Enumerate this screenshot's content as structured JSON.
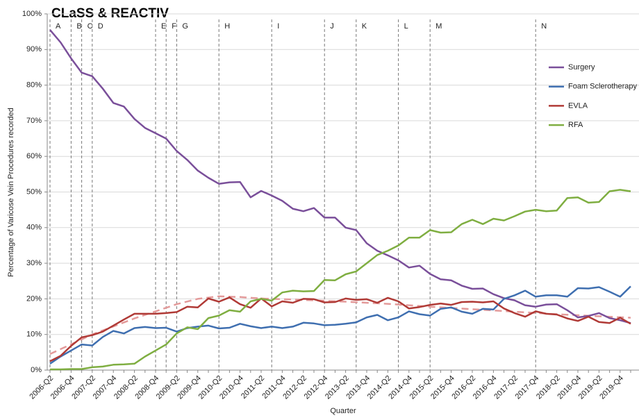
{
  "chart_data": {
    "type": "line",
    "title": "CLaSS & REACTIV",
    "y_label": "Percentage of Varicose Vein Procedures  recorded",
    "x_label": "Quarter",
    "categories": [
      "2006-Q2",
      null,
      "2006-Q4",
      null,
      "2007-Q2",
      null,
      "2007-Q4",
      null,
      "2008-Q2",
      null,
      "2008-Q4",
      null,
      "2009-Q2",
      null,
      "2009-Q4",
      null,
      "2010-Q2",
      null,
      "2010-Q4",
      null,
      "2011-Q2",
      null,
      "2011-Q4",
      null,
      "2012-Q2",
      null,
      "2012-Q4",
      null,
      "2013-Q2",
      null,
      "2013-Q4",
      null,
      "2014-Q2",
      null,
      "2014-Q4",
      null,
      "2015-Q2",
      null,
      "2015-Q4",
      null,
      "2016-Q2",
      null,
      "2016-Q4",
      null,
      "2017-Q2",
      null,
      "2017-Q4",
      null,
      "2018-Q2",
      null,
      "2018-Q4",
      null,
      "2019-Q2",
      null,
      "2019-Q4",
      null
    ],
    "ylim": [
      0,
      100
    ],
    "yticks": [
      {
        "value": 0,
        "label": "0%"
      },
      {
        "value": 10,
        "label": "10%"
      },
      {
        "value": 20,
        "label": "20%"
      },
      {
        "value": 30,
        "label": "30%"
      },
      {
        "value": 40,
        "label": "40%"
      },
      {
        "value": 50,
        "label": "50%"
      },
      {
        "value": 60,
        "label": "60%"
      },
      {
        "value": 70,
        "label": "70%"
      },
      {
        "value": 80,
        "label": "80%"
      },
      {
        "value": 90,
        "label": "90%"
      },
      {
        "value": 100,
        "label": "100%"
      }
    ],
    "grid": true,
    "series": [
      {
        "name": "Surgery",
        "color": "#7a4f9a",
        "values": [
          95.5,
          92,
          87.5,
          83.5,
          82.5,
          79,
          75,
          74,
          70.5,
          68,
          66.5,
          65,
          61.5,
          59,
          56,
          54,
          52.3,
          52.7,
          52.8,
          48.5,
          50.3,
          49,
          47.5,
          45.3,
          44.6,
          45.5,
          42.8,
          42.8,
          40,
          39.3,
          35.6,
          33.5,
          32.2,
          30.8,
          28.8,
          29.3,
          27,
          25.5,
          25.2,
          23.7,
          22.8,
          22.9,
          21.3,
          20.2,
          19.6,
          18.2,
          17.8,
          18.4,
          18.5,
          16.8,
          14.8,
          15.2,
          16,
          14.6,
          14,
          13.2
        ]
      },
      {
        "name": "Foam Sclerotherapy",
        "color": "#3f6fb0",
        "values": [
          1.8,
          3.8,
          5.5,
          7.2,
          6.9,
          9.3,
          11,
          10.3,
          11.8,
          12.1,
          11.8,
          11.9,
          10.8,
          11.8,
          12.2,
          12.5,
          11.7,
          11.9,
          13,
          12.3,
          11.8,
          12.2,
          11.8,
          12.2,
          13.3,
          13.1,
          12.6,
          12.7,
          13,
          13.4,
          14.8,
          15.5,
          14,
          14.8,
          16.5,
          15.7,
          15.3,
          17.2,
          17.6,
          16.4,
          15.8,
          17.2,
          17,
          20,
          21,
          22.3,
          20.6,
          21,
          21,
          20.6,
          23,
          22.9,
          23.3,
          22,
          20.6,
          23.5
        ]
      },
      {
        "name": "EVLA",
        "color": "#b03a36",
        "values": [
          2.5,
          4,
          6.8,
          9.2,
          9.8,
          10.8,
          12.5,
          14.2,
          15.8,
          15.8,
          15.8,
          16,
          16.3,
          17.8,
          17.6,
          20.1,
          19.2,
          20.4,
          18.5,
          17.5,
          20.1,
          17.9,
          19.3,
          18.9,
          20,
          19.9,
          19,
          19.1,
          20.1,
          19.7,
          19.9,
          18.9,
          20.3,
          19.3,
          17.3,
          17.7,
          18.3,
          18.7,
          18.3,
          19.1,
          19.2,
          19,
          19.3,
          17.3,
          16,
          15,
          16.5,
          15.8,
          15.6,
          14.5,
          13.8,
          15,
          13.5,
          13.2,
          14.7,
          13
        ]
      },
      {
        "name": "RFA",
        "color": "#7fae41",
        "values": [
          0.2,
          0.2,
          0.3,
          0.3,
          0.8,
          1,
          1.5,
          1.6,
          1.8,
          3.8,
          5.5,
          7.2,
          10.3,
          12,
          11.5,
          14.6,
          15.3,
          16.8,
          16.4,
          19.3,
          20,
          19.5,
          21.8,
          22.3,
          22.1,
          22.2,
          25.3,
          25.2,
          26.9,
          27.7,
          30,
          32.3,
          33.5,
          35,
          37.2,
          37.2,
          39.3,
          38.6,
          38.7,
          41,
          42.2,
          41,
          42.5,
          42,
          43.2,
          44.5,
          45,
          44.6,
          44.8,
          48.3,
          48.5,
          47,
          47.2,
          50.2,
          50.6,
          50.2
        ]
      }
    ],
    "trend": {
      "color": "#e39a9a",
      "x": [
        0,
        4,
        8,
        10,
        12,
        14,
        16,
        18,
        20,
        24,
        28,
        32,
        36,
        40,
        44,
        48,
        52,
        55
      ],
      "values": [
        4.5,
        10,
        14.5,
        16.5,
        18.5,
        20,
        20.7,
        20.5,
        20.1,
        19.7,
        19.2,
        18.6,
        17.8,
        17.1,
        16.4,
        15.7,
        15.1,
        14.7
      ]
    },
    "annotations": [
      {
        "label": "A",
        "at": 0
      },
      {
        "label": "B",
        "at": 2
      },
      {
        "label": "C",
        "at": 3
      },
      {
        "label": "D",
        "at": 4
      },
      {
        "label": "E",
        "at": 10
      },
      {
        "label": "F",
        "at": 11
      },
      {
        "label": "G",
        "at": 12
      },
      {
        "label": "H",
        "at": 16
      },
      {
        "label": "I",
        "at": 21
      },
      {
        "label": "J",
        "at": 26
      },
      {
        "label": "K",
        "at": 29
      },
      {
        "label": "L",
        "at": 33
      },
      {
        "label": "M",
        "at": 36
      },
      {
        "label": "N",
        "at": 46
      }
    ]
  }
}
